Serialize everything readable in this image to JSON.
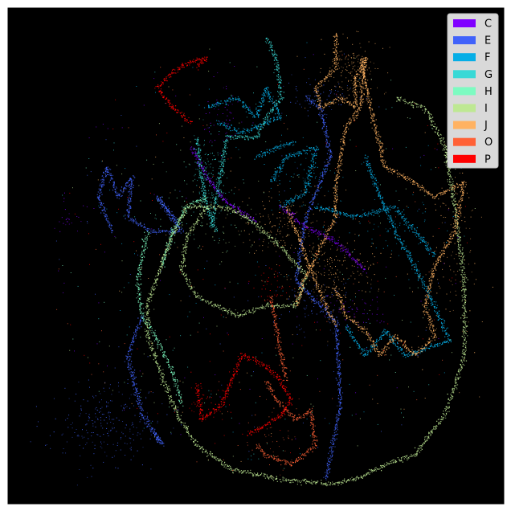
{
  "chart_data": {
    "type": "scatter",
    "title": "",
    "xlabel": "",
    "ylabel": "",
    "axes_visible": false,
    "background": "#000000",
    "legend": {
      "placement": "top-right"
    },
    "series": [
      {
        "name": "C",
        "color": "#8000ff",
        "strands": [
          [
            [
              0.37,
              0.72
            ],
            [
              0.4,
              0.66
            ],
            [
              0.44,
              0.61
            ],
            [
              0.5,
              0.57
            ]
          ],
          [
            [
              0.55,
              0.6
            ],
            [
              0.6,
              0.56
            ],
            [
              0.66,
              0.53
            ],
            [
              0.72,
              0.47
            ]
          ]
        ],
        "clusters": [
          {
            "center": [
              0.43,
              0.78
            ],
            "spread": [
              0.02,
              0.03
            ],
            "count": 60
          },
          {
            "center": [
              0.7,
              0.39
            ],
            "spread": [
              0.03,
              0.02
            ],
            "count": 60
          },
          {
            "center": [
              0.12,
              0.57
            ],
            "spread": [
              0.01,
              0.02
            ],
            "count": 25
          }
        ]
      },
      {
        "name": "E",
        "color": "#4062fa",
        "strands": [
          [
            [
              0.21,
              0.55
            ],
            [
              0.18,
              0.62
            ],
            [
              0.2,
              0.68
            ],
            [
              0.22,
              0.62
            ],
            [
              0.25,
              0.66
            ],
            [
              0.24,
              0.58
            ],
            [
              0.29,
              0.55
            ],
            [
              0.35,
              0.55
            ],
            [
              0.3,
              0.62
            ],
            [
              0.34,
              0.57
            ]
          ],
          [
            [
              0.27,
              0.38
            ],
            [
              0.24,
              0.3
            ],
            [
              0.27,
              0.18
            ],
            [
              0.31,
              0.12
            ],
            [
              0.29,
              0.15
            ]
          ],
          [
            [
              0.6,
              0.82
            ],
            [
              0.63,
              0.8
            ],
            [
              0.65,
              0.7
            ],
            [
              0.6,
              0.58
            ],
            [
              0.58,
              0.45
            ],
            [
              0.66,
              0.37
            ],
            [
              0.67,
              0.2
            ],
            [
              0.64,
              0.05
            ]
          ]
        ],
        "clusters": [
          {
            "center": [
              0.2,
              0.16
            ],
            "spread": [
              0.05,
              0.04
            ],
            "count": 260
          },
          {
            "center": [
              0.63,
              0.82
            ],
            "spread": [
              0.03,
              0.02
            ],
            "count": 80
          },
          {
            "center": [
              0.62,
              0.4
            ],
            "spread": [
              0.04,
              0.03
            ],
            "count": 80
          }
        ]
      },
      {
        "name": "F",
        "color": "#06aee6",
        "strands": [
          [
            [
              0.4,
              0.8
            ],
            [
              0.46,
              0.82
            ],
            [
              0.5,
              0.78
            ],
            [
              0.52,
              0.84
            ],
            [
              0.55,
              0.78
            ],
            [
              0.47,
              0.75
            ],
            [
              0.42,
              0.77
            ]
          ],
          [
            [
              0.53,
              0.65
            ],
            [
              0.56,
              0.7
            ],
            [
              0.62,
              0.72
            ],
            [
              0.6,
              0.63
            ],
            [
              0.55,
              0.6
            ]
          ],
          [
            [
              0.5,
              0.7
            ],
            [
              0.54,
              0.72
            ],
            [
              0.58,
              0.73
            ]
          ],
          [
            [
              0.72,
              0.7
            ],
            [
              0.75,
              0.62
            ],
            [
              0.78,
              0.55
            ],
            [
              0.82,
              0.48
            ],
            [
              0.86,
              0.4
            ],
            [
              0.89,
              0.33
            ],
            [
              0.8,
              0.3
            ],
            [
              0.76,
              0.35
            ],
            [
              0.72,
              0.3
            ],
            [
              0.68,
              0.36
            ]
          ],
          [
            [
              0.62,
              0.6
            ],
            [
              0.7,
              0.58
            ],
            [
              0.78,
              0.6
            ],
            [
              0.86,
              0.5
            ]
          ]
        ],
        "clusters": [
          {
            "center": [
              0.6,
              0.65
            ],
            "spread": [
              0.04,
              0.03
            ],
            "count": 80
          },
          {
            "center": [
              0.78,
              0.55
            ],
            "spread": [
              0.04,
              0.03
            ],
            "count": 60
          }
        ]
      },
      {
        "name": "G",
        "color": "#38d9d6",
        "strands": [
          [
            [
              0.52,
              0.94
            ],
            [
              0.54,
              0.9
            ],
            [
              0.55,
              0.82
            ],
            [
              0.52,
              0.78
            ],
            [
              0.5,
              0.74
            ],
            [
              0.44,
              0.74
            ],
            [
              0.43,
              0.68
            ],
            [
              0.42,
              0.62
            ],
            [
              0.41,
              0.56
            ]
          ],
          [
            [
              0.38,
              0.74
            ],
            [
              0.39,
              0.66
            ],
            [
              0.4,
              0.6
            ],
            [
              0.42,
              0.55
            ]
          ]
        ],
        "clusters": [
          {
            "center": [
              0.41,
              0.66
            ],
            "spread": [
              0.02,
              0.04
            ],
            "count": 140
          }
        ]
      },
      {
        "name": "H",
        "color": "#7dfbc1",
        "strands": [
          [
            [
              0.28,
              0.55
            ],
            [
              0.26,
              0.45
            ],
            [
              0.27,
              0.38
            ],
            [
              0.3,
              0.33
            ],
            [
              0.33,
              0.27
            ],
            [
              0.35,
              0.2
            ]
          ],
          [
            [
              0.4,
              0.62
            ],
            [
              0.36,
              0.6
            ],
            [
              0.33,
              0.55
            ],
            [
              0.31,
              0.48
            ]
          ]
        ],
        "clusters": [
          {
            "center": [
              0.38,
              0.6
            ],
            "spread": [
              0.05,
              0.04
            ],
            "count": 60
          }
        ]
      },
      {
        "name": "I",
        "color": "#bee893",
        "strands": [
          [
            [
              0.43,
              0.6
            ],
            [
              0.36,
              0.6
            ],
            [
              0.33,
              0.54
            ],
            [
              0.3,
              0.46
            ],
            [
              0.28,
              0.4
            ],
            [
              0.28,
              0.34
            ],
            [
              0.31,
              0.26
            ],
            [
              0.34,
              0.18
            ],
            [
              0.38,
              0.12
            ],
            [
              0.45,
              0.07
            ],
            [
              0.55,
              0.05
            ],
            [
              0.65,
              0.04
            ],
            [
              0.7,
              0.05
            ],
            [
              0.76,
              0.08
            ],
            [
              0.82,
              0.1
            ],
            [
              0.88,
              0.18
            ],
            [
              0.92,
              0.3
            ],
            [
              0.92,
              0.45
            ],
            [
              0.9,
              0.6
            ],
            [
              0.88,
              0.72
            ],
            [
              0.84,
              0.8
            ],
            [
              0.78,
              0.82
            ]
          ],
          [
            [
              0.43,
              0.6
            ],
            [
              0.48,
              0.58
            ],
            [
              0.55,
              0.52
            ],
            [
              0.6,
              0.46
            ],
            [
              0.58,
              0.4
            ],
            [
              0.52,
              0.4
            ],
            [
              0.46,
              0.38
            ],
            [
              0.42,
              0.4
            ],
            [
              0.38,
              0.42
            ],
            [
              0.35,
              0.47
            ],
            [
              0.36,
              0.54
            ],
            [
              0.4,
              0.6
            ]
          ]
        ],
        "clusters": [
          {
            "center": [
              0.45,
              0.56
            ],
            "spread": [
              0.05,
              0.04
            ],
            "count": 40
          }
        ]
      },
      {
        "name": "J",
        "color": "#ffb261",
        "strands": [
          [
            [
              0.66,
              0.95
            ],
            [
              0.66,
              0.88
            ],
            [
              0.62,
              0.84
            ],
            [
              0.63,
              0.8
            ],
            [
              0.67,
              0.82
            ],
            [
              0.7,
              0.8
            ],
            [
              0.7,
              0.86
            ],
            [
              0.72,
              0.9
            ],
            [
              0.71,
              0.8
            ],
            [
              0.68,
              0.76
            ],
            [
              0.67,
              0.7
            ],
            [
              0.66,
              0.64
            ],
            [
              0.66,
              0.58
            ],
            [
              0.63,
              0.52
            ],
            [
              0.6,
              0.46
            ],
            [
              0.58,
              0.4
            ]
          ],
          [
            [
              0.71,
              0.9
            ],
            [
              0.73,
              0.8
            ],
            [
              0.76,
              0.68
            ],
            [
              0.8,
              0.66
            ],
            [
              0.86,
              0.62
            ],
            [
              0.92,
              0.65
            ],
            [
              0.9,
              0.55
            ],
            [
              0.86,
              0.48
            ],
            [
              0.84,
              0.4
            ],
            [
              0.86,
              0.34
            ],
            [
              0.82,
              0.3
            ],
            [
              0.78,
              0.34
            ],
            [
              0.75,
              0.3
            ],
            [
              0.72,
              0.35
            ],
            [
              0.68,
              0.38
            ],
            [
              0.66,
              0.44
            ]
          ],
          [
            [
              0.56,
              0.6
            ],
            [
              0.58,
              0.55
            ],
            [
              0.6,
              0.5
            ],
            [
              0.62,
              0.45
            ],
            [
              0.64,
              0.4
            ],
            [
              0.66,
              0.36
            ]
          ]
        ],
        "clusters": [
          {
            "center": [
              0.69,
              0.88
            ],
            "spread": [
              0.03,
              0.03
            ],
            "count": 150
          },
          {
            "center": [
              0.66,
              0.47
            ],
            "spread": [
              0.05,
              0.04
            ],
            "count": 200
          },
          {
            "center": [
              0.56,
              0.57
            ],
            "spread": [
              0.05,
              0.04
            ],
            "count": 140
          },
          {
            "center": [
              0.9,
              0.5
            ],
            "spread": [
              0.03,
              0.1
            ],
            "count": 120
          }
        ]
      },
      {
        "name": "O",
        "color": "#ff6136",
        "strands": [
          [
            [
              0.52,
              0.25
            ],
            [
              0.54,
              0.21
            ],
            [
              0.58,
              0.17
            ],
            [
              0.61,
              0.19
            ],
            [
              0.62,
              0.12
            ],
            [
              0.57,
              0.08
            ],
            [
              0.52,
              0.1
            ],
            [
              0.5,
              0.12
            ]
          ],
          [
            [
              0.53,
              0.42
            ],
            [
              0.54,
              0.36
            ],
            [
              0.55,
              0.3
            ],
            [
              0.56,
              0.25
            ]
          ]
        ],
        "clusters": [
          {
            "center": [
              0.54,
              0.13
            ],
            "spread": [
              0.03,
              0.03
            ],
            "count": 50
          }
        ]
      },
      {
        "name": "P",
        "color": "#ff0000",
        "strands": [
          [
            [
              0.38,
              0.24
            ],
            [
              0.39,
              0.17
            ],
            [
              0.43,
              0.2
            ],
            [
              0.45,
              0.25
            ],
            [
              0.47,
              0.3
            ],
            [
              0.5,
              0.29
            ],
            [
              0.54,
              0.26
            ],
            [
              0.57,
              0.21
            ],
            [
              0.55,
              0.18
            ],
            [
              0.52,
              0.16
            ],
            [
              0.48,
              0.14
            ]
          ],
          [
            [
              0.37,
              0.77
            ],
            [
              0.33,
              0.8
            ],
            [
              0.3,
              0.84
            ],
            [
              0.33,
              0.87
            ],
            [
              0.36,
              0.89
            ],
            [
              0.4,
              0.9
            ],
            [
              0.38,
              0.88
            ]
          ]
        ],
        "clusters": [
          {
            "center": [
              0.53,
              0.44
            ],
            "spread": [
              0.02,
              0.02
            ],
            "count": 40
          },
          {
            "center": [
              0.4,
              0.21
            ],
            "spread": [
              0.03,
              0.02
            ],
            "count": 40
          }
        ]
      }
    ]
  }
}
